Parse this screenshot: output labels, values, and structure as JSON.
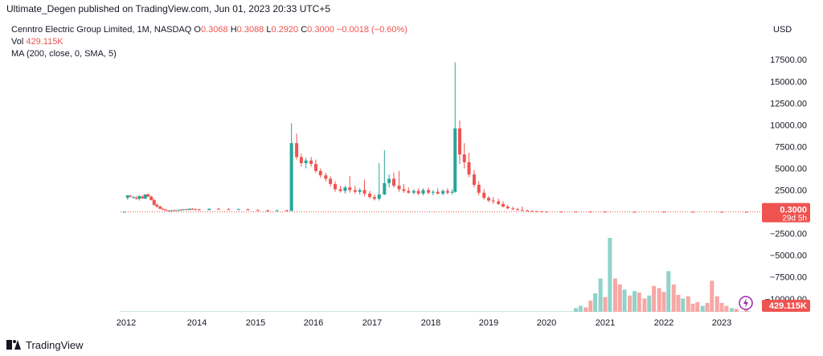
{
  "header": {
    "published_line": "Ultimate_Degen published on TradingView.com, Jun 01, 2023 20:33 UTC+5"
  },
  "legend": {
    "symbol": "Cenntro Electric Group Limited, 1M, NASDAQ",
    "o_label": "O",
    "o_value": "0.3068",
    "h_label": "H",
    "h_value": "0.3088",
    "l_label": "L",
    "l_value": "0.2920",
    "c_label": "C",
    "c_value": "0.3000",
    "change": "−0.0018 (−0.60%)",
    "vol_label": "Vol",
    "vol_value": "429.115K",
    "ma_label": "MA (200, close, 0, SMA, 5)"
  },
  "currency": "USD",
  "footer": {
    "brand": "TradingView"
  },
  "colors": {
    "up": "#26a69a",
    "down": "#ef5350",
    "vol_up": "#8fd3c9",
    "vol_down": "#f7a7a5"
  },
  "chart_data": {
    "type": "candlestick",
    "price_axis_ticks": [
      "17500.00",
      "15000.00",
      "12500.00",
      "10000.00",
      "7500.00",
      "5000.00",
      "2500.00",
      "−2500.00",
      "−5000.00",
      "−7500.00",
      "−10000.00"
    ],
    "price_axis_values": [
      17500,
      15000,
      12500,
      10000,
      7500,
      5000,
      2500,
      -2500,
      -5000,
      -7500,
      -10000
    ],
    "ylim": [
      -11500,
      19000
    ],
    "x_ticks": [
      "2012",
      "2014",
      "2015",
      "2016",
      "2017",
      "2018",
      "2019",
      "2020",
      "2021",
      "2022",
      "2023"
    ],
    "x_tick_years": [
      2012,
      2014,
      2015,
      2016,
      2017,
      2018,
      2019,
      2020,
      2021,
      2022,
      2023
    ],
    "last_price_label": "0.3000",
    "countdown_label": "29d 5h",
    "volume_label": "429.115K",
    "candles": [
      {
        "t": 2011.95,
        "o": 0,
        "h": 0,
        "l": 0,
        "c": 0
      },
      {
        "t": 2012.04,
        "o": 1600,
        "h": 1900,
        "l": 1400,
        "c": 1900
      },
      {
        "t": 2012.12,
        "o": 1850,
        "h": 1950,
        "l": 1650,
        "c": 1750
      },
      {
        "t": 2012.21,
        "o": 1700,
        "h": 1800,
        "l": 1550,
        "c": 1700
      },
      {
        "t": 2012.29,
        "o": 1600,
        "h": 1800,
        "l": 1400,
        "c": 1500
      },
      {
        "t": 2012.37,
        "o": 1500,
        "h": 1900,
        "l": 1300,
        "c": 1800
      },
      {
        "t": 2012.46,
        "o": 1750,
        "h": 1900,
        "l": 1500,
        "c": 1550
      },
      {
        "t": 2012.54,
        "o": 1500,
        "h": 2000,
        "l": 1500,
        "c": 2000
      },
      {
        "t": 2012.62,
        "o": 2000,
        "h": 2100,
        "l": 1700,
        "c": 1750
      },
      {
        "t": 2012.71,
        "o": 1750,
        "h": 1850,
        "l": 1300,
        "c": 1350
      },
      {
        "t": 2012.79,
        "o": 1350,
        "h": 1500,
        "l": 700,
        "c": 800
      },
      {
        "t": 2012.87,
        "o": 800,
        "h": 1000,
        "l": 500,
        "c": 600
      },
      {
        "t": 2012.96,
        "o": 600,
        "h": 700,
        "l": 300,
        "c": 350
      },
      {
        "t": 2013.04,
        "o": 350,
        "h": 450,
        "l": 200,
        "c": 250
      },
      {
        "t": 2013.12,
        "o": 250,
        "h": 300,
        "l": 100,
        "c": 150
      },
      {
        "t": 2013.21,
        "o": 150,
        "h": 200,
        "l": 80,
        "c": 120
      },
      {
        "t": 2013.29,
        "o": 120,
        "h": 200,
        "l": 60,
        "c": 180
      },
      {
        "t": 2013.37,
        "o": 180,
        "h": 250,
        "l": 100,
        "c": 130
      },
      {
        "t": 2013.46,
        "o": 130,
        "h": 250,
        "l": 100,
        "c": 220
      },
      {
        "t": 2013.54,
        "o": 220,
        "h": 300,
        "l": 150,
        "c": 200
      },
      {
        "t": 2013.62,
        "o": 200,
        "h": 320,
        "l": 170,
        "c": 300
      },
      {
        "t": 2013.71,
        "o": 300,
        "h": 350,
        "l": 180,
        "c": 220
      },
      {
        "t": 2013.79,
        "o": 220,
        "h": 400,
        "l": 200,
        "c": 350
      },
      {
        "t": 2013.87,
        "o": 350,
        "h": 420,
        "l": 250,
        "c": 300
      },
      {
        "t": 2013.96,
        "o": 300,
        "h": 380,
        "l": 220,
        "c": 280
      },
      {
        "t": 2014.04,
        "o": 280,
        "h": 350,
        "l": 150,
        "c": 200
      },
      {
        "t": 2014.21,
        "o": 200,
        "h": 400,
        "l": 180,
        "c": 350
      },
      {
        "t": 2014.37,
        "o": 350,
        "h": 450,
        "l": 250,
        "c": 300
      },
      {
        "t": 2014.54,
        "o": 300,
        "h": 420,
        "l": 200,
        "c": 250
      },
      {
        "t": 2014.71,
        "o": 250,
        "h": 380,
        "l": 200,
        "c": 300
      },
      {
        "t": 2014.87,
        "o": 300,
        "h": 350,
        "l": 150,
        "c": 200
      },
      {
        "t": 2015.04,
        "o": 200,
        "h": 300,
        "l": 100,
        "c": 150
      },
      {
        "t": 2015.21,
        "o": 150,
        "h": 250,
        "l": 80,
        "c": 100
      },
      {
        "t": 2015.37,
        "o": 100,
        "h": 220,
        "l": 50,
        "c": 180
      },
      {
        "t": 2015.54,
        "o": 180,
        "h": 250,
        "l": 60,
        "c": 100
      },
      {
        "t": 2015.62,
        "o": 100,
        "h": 10200,
        "l": 100,
        "c": 7900
      },
      {
        "t": 2015.71,
        "o": 7900,
        "h": 9000,
        "l": 6000,
        "c": 6300
      },
      {
        "t": 2015.79,
        "o": 6300,
        "h": 6700,
        "l": 5200,
        "c": 5600
      },
      {
        "t": 2015.87,
        "o": 5600,
        "h": 6200,
        "l": 5000,
        "c": 5900
      },
      {
        "t": 2015.96,
        "o": 5900,
        "h": 6300,
        "l": 5200,
        "c": 5500
      },
      {
        "t": 2016.04,
        "o": 5500,
        "h": 6000,
        "l": 4500,
        "c": 4700
      },
      {
        "t": 2016.12,
        "o": 4700,
        "h": 5000,
        "l": 3900,
        "c": 4200
      },
      {
        "t": 2016.21,
        "o": 4200,
        "h": 4500,
        "l": 3500,
        "c": 3800
      },
      {
        "t": 2016.29,
        "o": 3800,
        "h": 4100,
        "l": 2900,
        "c": 3200
      },
      {
        "t": 2016.37,
        "o": 3200,
        "h": 3500,
        "l": 2300,
        "c": 2600
      },
      {
        "t": 2016.46,
        "o": 2600,
        "h": 3000,
        "l": 2200,
        "c": 2400
      },
      {
        "t": 2016.54,
        "o": 2400,
        "h": 3000,
        "l": 2100,
        "c": 2800
      },
      {
        "t": 2016.62,
        "o": 2800,
        "h": 4100,
        "l": 2200,
        "c": 2500
      },
      {
        "t": 2016.71,
        "o": 2500,
        "h": 3000,
        "l": 2100,
        "c": 2300
      },
      {
        "t": 2016.79,
        "o": 2300,
        "h": 2700,
        "l": 2000,
        "c": 2500
      },
      {
        "t": 2016.87,
        "o": 2500,
        "h": 3700,
        "l": 1800,
        "c": 2100
      },
      {
        "t": 2016.96,
        "o": 2100,
        "h": 2400,
        "l": 1500,
        "c": 1700
      },
      {
        "t": 2017.04,
        "o": 1700,
        "h": 2000,
        "l": 1300,
        "c": 1500
      },
      {
        "t": 2017.12,
        "o": 1500,
        "h": 5600,
        "l": 1300,
        "c": 2000
      },
      {
        "t": 2017.21,
        "o": 2000,
        "h": 7100,
        "l": 1900,
        "c": 3300
      },
      {
        "t": 2017.29,
        "o": 3300,
        "h": 4300,
        "l": 2800,
        "c": 3800
      },
      {
        "t": 2017.37,
        "o": 3800,
        "h": 4500,
        "l": 2800,
        "c": 3000
      },
      {
        "t": 2017.46,
        "o": 3000,
        "h": 4700,
        "l": 2300,
        "c": 2600
      },
      {
        "t": 2017.54,
        "o": 2600,
        "h": 3200,
        "l": 2200,
        "c": 2400
      },
      {
        "t": 2017.62,
        "o": 2400,
        "h": 2800,
        "l": 2100,
        "c": 2200
      },
      {
        "t": 2017.71,
        "o": 2200,
        "h": 2600,
        "l": 2000,
        "c": 2400
      },
      {
        "t": 2017.79,
        "o": 2400,
        "h": 2700,
        "l": 1900,
        "c": 2100
      },
      {
        "t": 2017.87,
        "o": 2100,
        "h": 2700,
        "l": 1900,
        "c": 2500
      },
      {
        "t": 2017.96,
        "o": 2500,
        "h": 2800,
        "l": 2000,
        "c": 2200
      },
      {
        "t": 2018.04,
        "o": 2200,
        "h": 2500,
        "l": 1900,
        "c": 2300
      },
      {
        "t": 2018.12,
        "o": 2300,
        "h": 2700,
        "l": 2000,
        "c": 2100
      },
      {
        "t": 2018.21,
        "o": 2100,
        "h": 2600,
        "l": 1900,
        "c": 2400
      },
      {
        "t": 2018.29,
        "o": 2400,
        "h": 2700,
        "l": 2000,
        "c": 2200
      },
      {
        "t": 2018.37,
        "o": 2200,
        "h": 2600,
        "l": 2000,
        "c": 2300
      },
      {
        "t": 2018.42,
        "o": 2300,
        "h": 17200,
        "l": 2200,
        "c": 9600
      },
      {
        "t": 2018.5,
        "o": 9600,
        "h": 10500,
        "l": 5500,
        "c": 6600
      },
      {
        "t": 2018.58,
        "o": 6600,
        "h": 7900,
        "l": 5000,
        "c": 5700
      },
      {
        "t": 2018.66,
        "o": 5700,
        "h": 6800,
        "l": 4000,
        "c": 4300
      },
      {
        "t": 2018.75,
        "o": 4300,
        "h": 4800,
        "l": 2800,
        "c": 3100
      },
      {
        "t": 2018.83,
        "o": 3100,
        "h": 3500,
        "l": 1900,
        "c": 2200
      },
      {
        "t": 2018.92,
        "o": 2200,
        "h": 2600,
        "l": 1400,
        "c": 1600
      },
      {
        "t": 2019.0,
        "o": 1600,
        "h": 1800,
        "l": 1100,
        "c": 1300
      },
      {
        "t": 2019.08,
        "o": 1300,
        "h": 1700,
        "l": 900,
        "c": 1200
      },
      {
        "t": 2019.17,
        "o": 1200,
        "h": 1500,
        "l": 800,
        "c": 900
      },
      {
        "t": 2019.25,
        "o": 900,
        "h": 1200,
        "l": 500,
        "c": 600
      },
      {
        "t": 2019.33,
        "o": 600,
        "h": 800,
        "l": 300,
        "c": 400
      },
      {
        "t": 2019.42,
        "o": 400,
        "h": 600,
        "l": 200,
        "c": 300
      },
      {
        "t": 2019.5,
        "o": 300,
        "h": 450,
        "l": 150,
        "c": 200
      },
      {
        "t": 2019.58,
        "o": 200,
        "h": 600,
        "l": 100,
        "c": 150
      },
      {
        "t": 2019.67,
        "o": 150,
        "h": 250,
        "l": 60,
        "c": 90
      },
      {
        "t": 2019.75,
        "o": 90,
        "h": 150,
        "l": 40,
        "c": 60
      },
      {
        "t": 2019.83,
        "o": 60,
        "h": 100,
        "l": 30,
        "c": 45
      },
      {
        "t": 2019.92,
        "o": 45,
        "h": 70,
        "l": 20,
        "c": 30
      },
      {
        "t": 2020.0,
        "o": 30,
        "h": 50,
        "l": 15,
        "c": 25
      },
      {
        "t": 2020.25,
        "o": 25,
        "h": 40,
        "l": 10,
        "c": 15
      },
      {
        "t": 2020.5,
        "o": 15,
        "h": 30,
        "l": 8,
        "c": 12
      },
      {
        "t": 2020.75,
        "o": 12,
        "h": 25,
        "l": 6,
        "c": 10
      },
      {
        "t": 2021.0,
        "o": 10,
        "h": 20,
        "l": 5,
        "c": 8
      },
      {
        "t": 2021.5,
        "o": 8,
        "h": 15,
        "l": 4,
        "c": 6
      },
      {
        "t": 2022.0,
        "o": 6,
        "h": 10,
        "l": 2,
        "c": 3
      },
      {
        "t": 2022.5,
        "o": 3,
        "h": 5,
        "l": 1,
        "c": 2
      },
      {
        "t": 2023.0,
        "o": 2,
        "h": 3,
        "l": 0.5,
        "c": 1
      },
      {
        "t": 2023.42,
        "o": 0.3068,
        "h": 0.3088,
        "l": 0.292,
        "c": 0.3
      }
    ],
    "volume": [
      {
        "t": 2020.5,
        "v": 0.05,
        "up": true
      },
      {
        "t": 2020.58,
        "v": 0.08,
        "up": true
      },
      {
        "t": 2020.67,
        "v": 0.06,
        "up": false
      },
      {
        "t": 2020.75,
        "v": 0.15,
        "up": false
      },
      {
        "t": 2020.83,
        "v": 0.25,
        "up": true
      },
      {
        "t": 2020.92,
        "v": 0.45,
        "up": true
      },
      {
        "t": 2021.0,
        "v": 0.2,
        "up": false
      },
      {
        "t": 2021.08,
        "v": 1.0,
        "up": true
      },
      {
        "t": 2021.17,
        "v": 0.45,
        "up": false
      },
      {
        "t": 2021.25,
        "v": 0.37,
        "up": false
      },
      {
        "t": 2021.33,
        "v": 0.3,
        "up": true
      },
      {
        "t": 2021.42,
        "v": 0.22,
        "up": false
      },
      {
        "t": 2021.5,
        "v": 0.28,
        "up": true
      },
      {
        "t": 2021.58,
        "v": 0.26,
        "up": false
      },
      {
        "t": 2021.67,
        "v": 0.18,
        "up": false
      },
      {
        "t": 2021.75,
        "v": 0.22,
        "up": true
      },
      {
        "t": 2021.83,
        "v": 0.35,
        "up": false
      },
      {
        "t": 2021.92,
        "v": 0.32,
        "up": false
      },
      {
        "t": 2022.0,
        "v": 0.27,
        "up": false
      },
      {
        "t": 2022.08,
        "v": 0.55,
        "up": true
      },
      {
        "t": 2022.17,
        "v": 0.37,
        "up": false
      },
      {
        "t": 2022.25,
        "v": 0.23,
        "up": false
      },
      {
        "t": 2022.33,
        "v": 0.18,
        "up": true
      },
      {
        "t": 2022.42,
        "v": 0.21,
        "up": false
      },
      {
        "t": 2022.5,
        "v": 0.11,
        "up": false
      },
      {
        "t": 2022.58,
        "v": 0.13,
        "up": false
      },
      {
        "t": 2022.67,
        "v": 0.08,
        "up": true
      },
      {
        "t": 2022.75,
        "v": 0.12,
        "up": false
      },
      {
        "t": 2022.83,
        "v": 0.42,
        "up": false
      },
      {
        "t": 2022.92,
        "v": 0.21,
        "up": false
      },
      {
        "t": 2023.0,
        "v": 0.12,
        "up": false
      },
      {
        "t": 2023.08,
        "v": 0.08,
        "up": false
      },
      {
        "t": 2023.17,
        "v": 0.05,
        "up": true
      },
      {
        "t": 2023.25,
        "v": 0.04,
        "up": false
      },
      {
        "t": 2023.42,
        "v": 0.03,
        "up": false
      }
    ],
    "volume_scale_note": "relative to tallest bar"
  }
}
